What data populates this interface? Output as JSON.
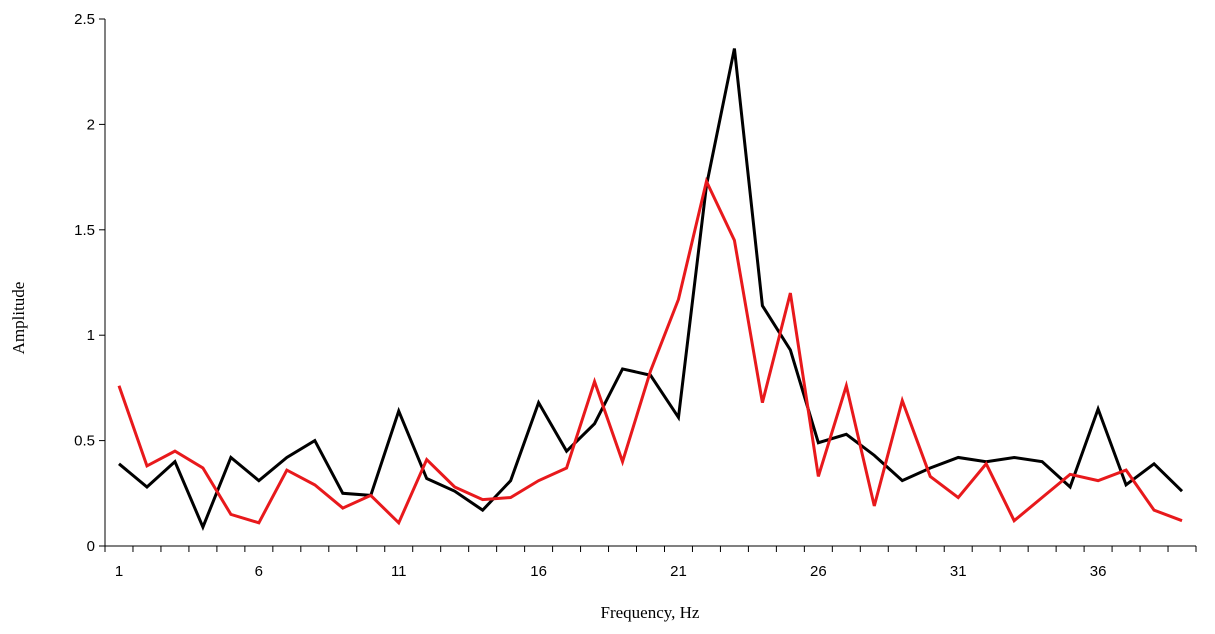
{
  "chart_data": {
    "type": "line",
    "xlabel": "Frequency, Hz",
    "ylabel": "Amplitude",
    "x": [
      1,
      2,
      3,
      4,
      5,
      6,
      7,
      8,
      9,
      10,
      11,
      12,
      13,
      14,
      15,
      16,
      17,
      18,
      19,
      20,
      21,
      22,
      23,
      24,
      25,
      26,
      27,
      28,
      29,
      30,
      31,
      32,
      33,
      34,
      35,
      36,
      37,
      38,
      39
    ],
    "x_tick_labels": [
      "1",
      "6",
      "11",
      "16",
      "21",
      "26",
      "31",
      "36"
    ],
    "y_tick_labels": [
      "0",
      "0.5",
      "1",
      "1.5",
      "2",
      "2.5"
    ],
    "ylim": [
      0,
      2.5
    ],
    "xlim": [
      1,
      39
    ],
    "grid": false,
    "series": [
      {
        "color": "#000000",
        "values": [
          0.39,
          0.28,
          0.4,
          0.09,
          0.42,
          0.31,
          0.42,
          0.5,
          0.25,
          0.24,
          0.64,
          0.32,
          0.26,
          0.17,
          0.31,
          0.68,
          0.45,
          0.58,
          0.84,
          0.81,
          0.61,
          1.71,
          2.36,
          1.14,
          0.93,
          0.49,
          0.53,
          0.43,
          0.31,
          0.37,
          0.42,
          0.4,
          0.42,
          0.4,
          0.28,
          0.65,
          0.29,
          0.39,
          0.26
        ]
      },
      {
        "color": "#e8191c",
        "values": [
          0.76,
          0.38,
          0.45,
          0.37,
          0.15,
          0.11,
          0.36,
          0.29,
          0.18,
          0.24,
          0.11,
          0.41,
          0.28,
          0.22,
          0.23,
          0.31,
          0.37,
          0.78,
          0.4,
          0.83,
          1.17,
          1.73,
          1.45,
          0.68,
          1.2,
          0.33,
          0.76,
          0.19,
          0.69,
          0.33,
          0.23,
          0.39,
          0.12,
          0.23,
          0.34,
          0.31,
          0.36,
          0.17,
          0.12
        ]
      }
    ]
  }
}
